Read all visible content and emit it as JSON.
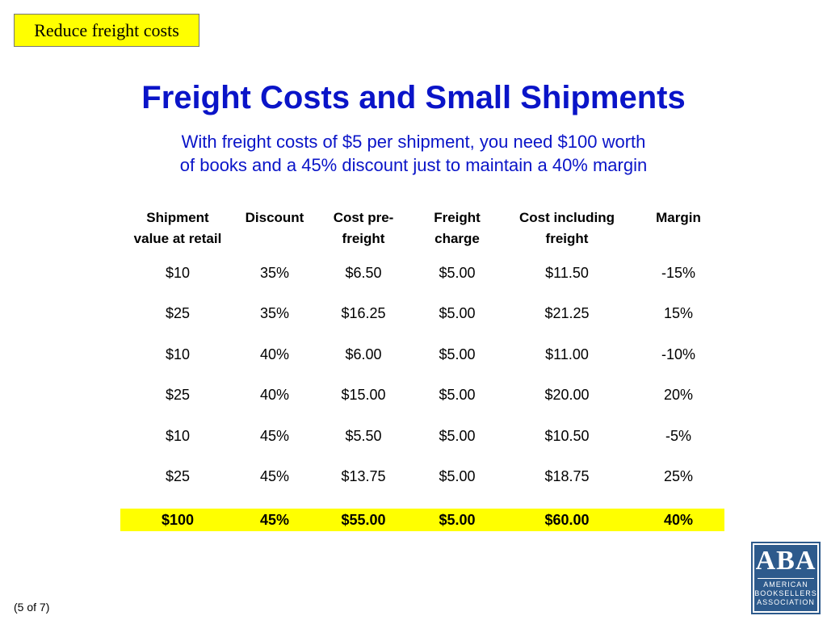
{
  "tag": {
    "label": "Reduce freight costs"
  },
  "title": "Freight Costs and Small Shipments",
  "subtitle": {
    "line1": "With freight costs of $5 per shipment, you need $100 worth",
    "line2": "of books and a 45% discount just to maintain a 40% margin"
  },
  "table": {
    "headers": [
      {
        "line1": "Shipment",
        "line2": "value at retail"
      },
      {
        "line1": "Discount",
        "line2": ""
      },
      {
        "line1": "Cost pre-",
        "line2": "freight"
      },
      {
        "line1": "Freight",
        "line2": "charge"
      },
      {
        "line1": "Cost including",
        "line2": "freight"
      },
      {
        "line1": "Margin",
        "line2": ""
      }
    ],
    "rows": [
      [
        "$10",
        "35%",
        "$6.50",
        "$5.00",
        "$11.50",
        "-15%"
      ],
      [
        "$25",
        "35%",
        "$16.25",
        "$5.00",
        "$21.25",
        "15%"
      ],
      [
        "$10",
        "40%",
        "$6.00",
        "$5.00",
        "$11.00",
        "-10%"
      ],
      [
        "$25",
        "40%",
        "$15.00",
        "$5.00",
        "$20.00",
        "20%"
      ],
      [
        "$10",
        "45%",
        "$5.50",
        "$5.00",
        "$10.50",
        "-5%"
      ],
      [
        "$25",
        "45%",
        "$13.75",
        "$5.00",
        "$18.75",
        "25%"
      ]
    ],
    "highlight_row": [
      "$100",
      "45%",
      "$55.00",
      "$5.00",
      "$60.00",
      "40%"
    ]
  },
  "footer": {
    "page": "(5 of 7)"
  },
  "logo": {
    "letters": "ABA",
    "line1": "AMERICAN",
    "line2": "BOOKSELLERS",
    "line3": "ASSOCIATION"
  },
  "colors": {
    "title": "#0a14c8",
    "highlight": "#ffff00",
    "logo": "#2d5a8c"
  }
}
